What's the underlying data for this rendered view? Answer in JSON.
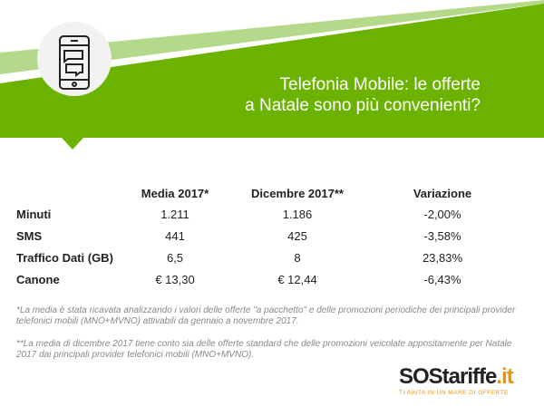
{
  "header": {
    "title_line1": "Telefonia Mobile: le offerte",
    "title_line2": "a Natale sono più convenienti?",
    "icon": "smartphone-chat-icon",
    "color": "#6bb300"
  },
  "table": {
    "columns": [
      "",
      "Media 2017*",
      "Dicembre 2017**",
      "Variazione"
    ],
    "rows": [
      {
        "label": "Minuti",
        "media": "1.211",
        "dicembre": "1.186",
        "variazione": "-2,00%"
      },
      {
        "label": "SMS",
        "media": "441",
        "dicembre": "425",
        "variazione": "-3,58%"
      },
      {
        "label": "Traffico Dati (GB)",
        "media": "6,5",
        "dicembre": "8",
        "variazione": "23,83%"
      },
      {
        "label": "Canone",
        "media": "€ 13,30",
        "dicembre": "€ 12,44",
        "variazione": "-6,43%"
      }
    ]
  },
  "notes": [
    "*La media è stata ricavata analizzando i valori delle offerte \"a pacchetto\" e delle promozioni periodiche dei principali provider telefonici mobili (MNO+MVNO) attivabili da gennaio a novembre 2017.",
    "**La media di dicembre 2017 tiene conto sia delle offerte standard che delle promozioni veicolate appositamente per Natale 2017 dai principali provider telefonici mobili (MNO+MVNO)."
  ],
  "logo": {
    "name": "SOStariffe",
    "tld": ".it",
    "tagline": "TI AIUTA IN UN MARE DI OFFERTE"
  }
}
